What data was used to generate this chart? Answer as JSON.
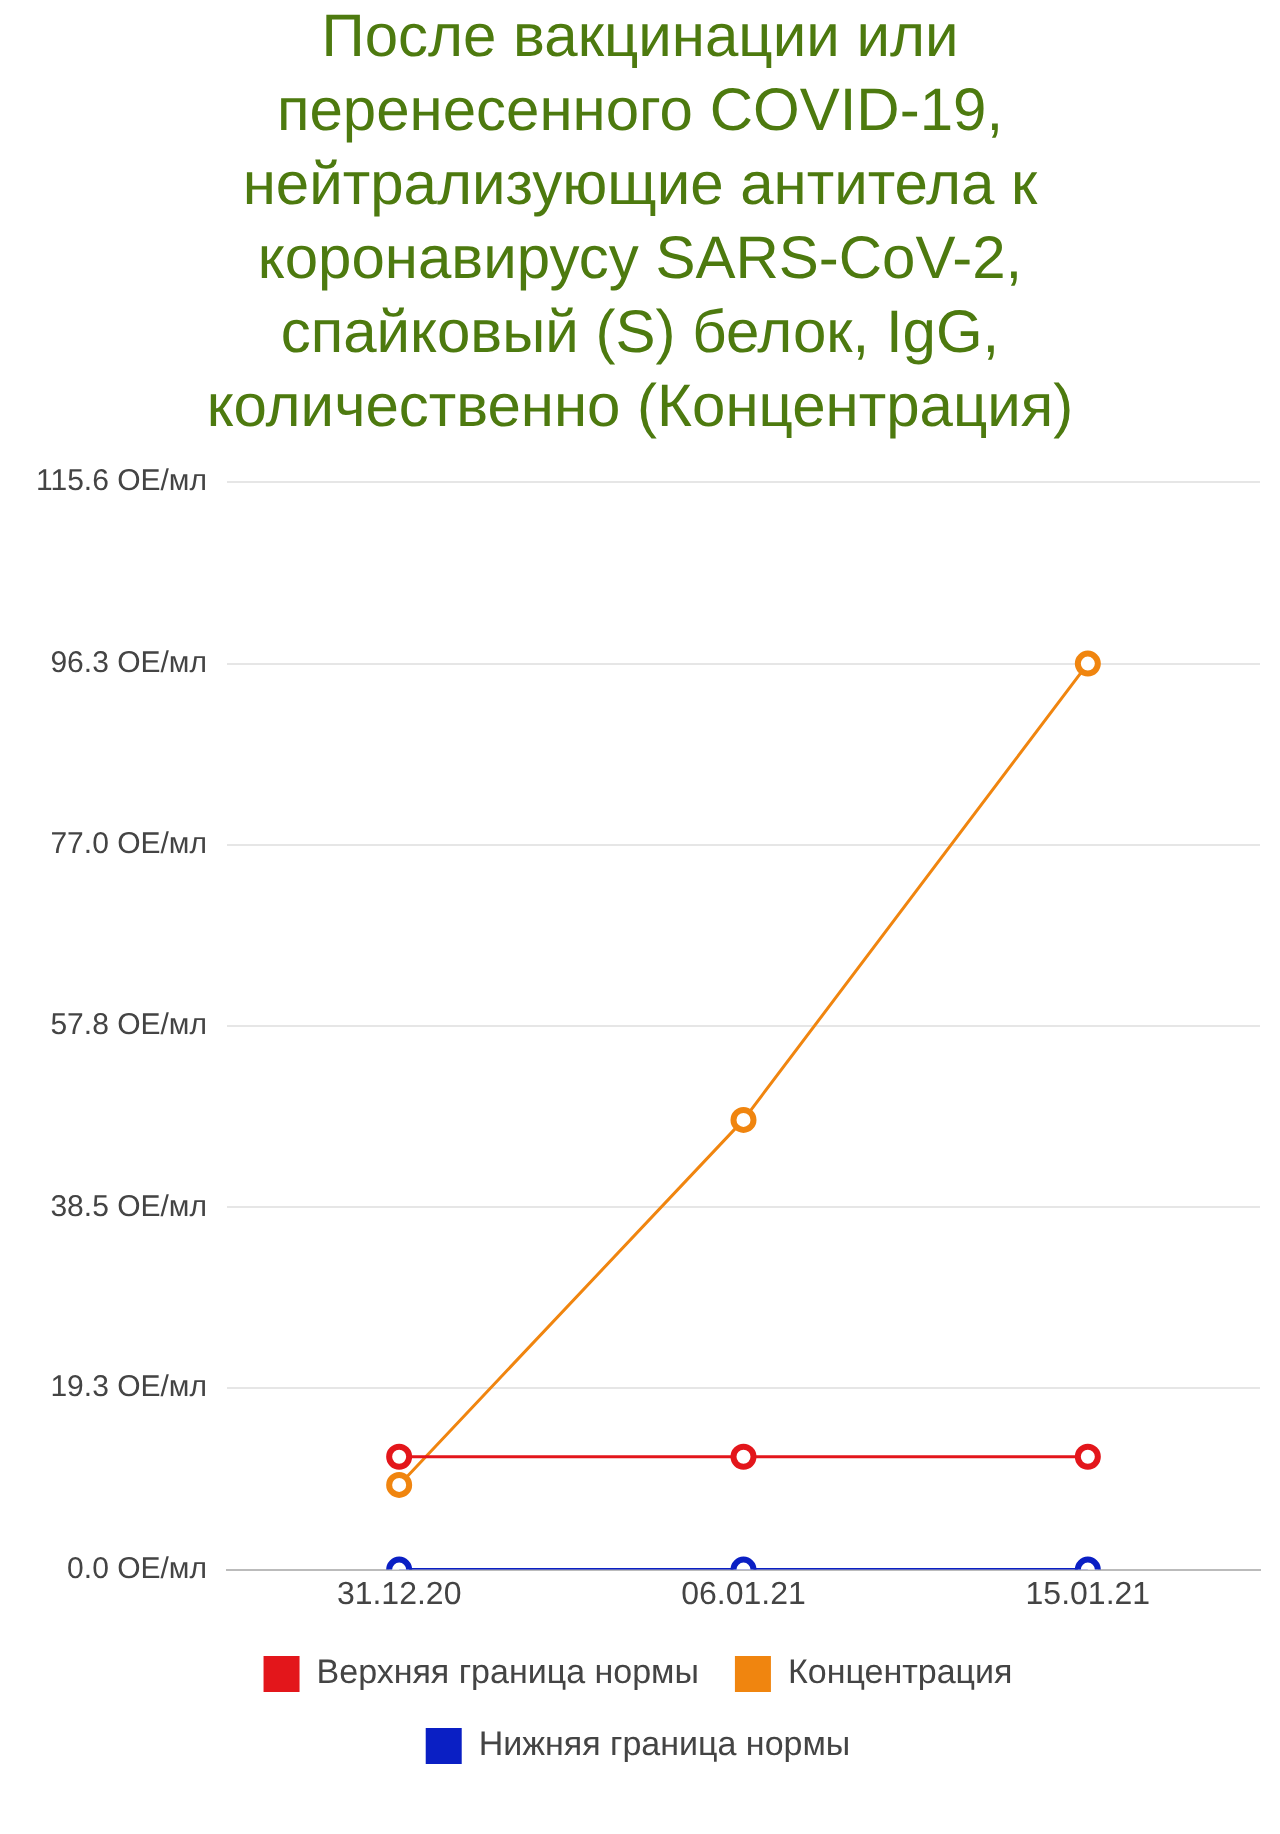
{
  "chart_data": {
    "type": "line",
    "title": "После вакцинации или перенесенного COVID-19, нейтрализующие антитела к коронавирусу SARS-CoV-2, спайковый (S) белок, IgG, количественно (Концентрация)",
    "categories": [
      "31.12.20",
      "06.01.21",
      "15.01.21"
    ],
    "series": [
      {
        "name": "Верхняя граница нормы",
        "color": "#e3161b",
        "values": [
          12,
          12,
          12
        ]
      },
      {
        "name": "Концентрация",
        "color": "#f0850f",
        "values": [
          9,
          47.8,
          96.3
        ]
      },
      {
        "name": "Нижняя граница нормы",
        "color": "#0a1fc4",
        "values": [
          0,
          0,
          0
        ]
      }
    ],
    "ylim": [
      0,
      115.6
    ],
    "yticks": [
      {
        "value": 0,
        "label": "0.0 ОЕ/мл"
      },
      {
        "value": 19.3,
        "label": "19.3 ОЕ/мл"
      },
      {
        "value": 38.5,
        "label": "38.5 ОЕ/мл"
      },
      {
        "value": 57.8,
        "label": "57.8 ОЕ/мл"
      },
      {
        "value": 77,
        "label": "77.0 ОЕ/мл"
      },
      {
        "value": 96.3,
        "label": "96.3 ОЕ/мл"
      },
      {
        "value": 115.6,
        "label": "115.6 ОЕ/мл"
      }
    ],
    "grid": "y",
    "legend": "bottom",
    "marker": "circle",
    "line_style": "solid"
  }
}
